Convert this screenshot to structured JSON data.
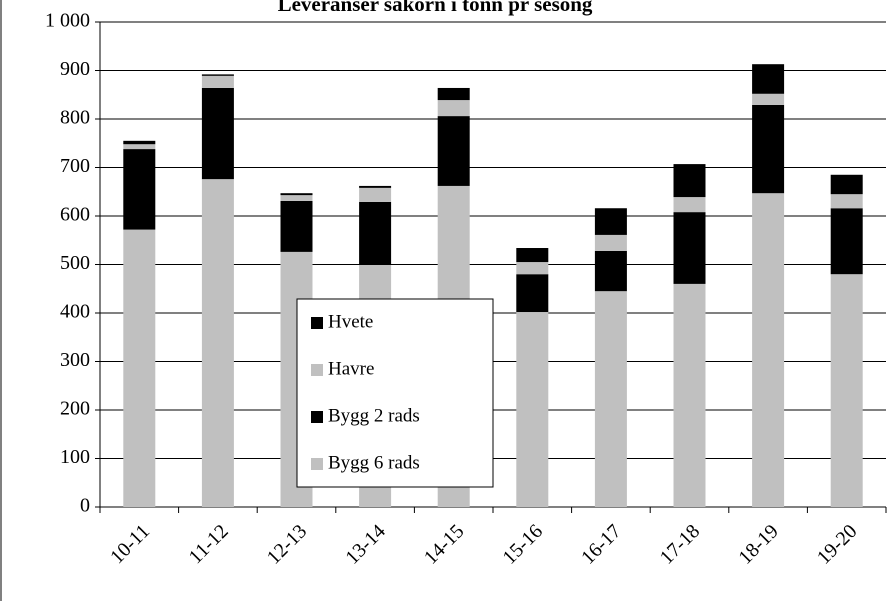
{
  "chart_data": {
    "type": "bar",
    "stacked": true,
    "title": "Leveranser såkorn i tonn pr sesong",
    "categories": [
      "10-11",
      "11-12",
      "12-13",
      "13-14",
      "14-15",
      "15-16",
      "16-17",
      "17-18",
      "18-19",
      "19-20"
    ],
    "series": [
      {
        "name": "Bygg 6 rads",
        "color": "#c0c0c0",
        "values": [
          572,
          676,
          526,
          499,
          662,
          402,
          445,
          460,
          647,
          480
        ]
      },
      {
        "name": "Bygg 2 rads",
        "color": "#000000",
        "values": [
          166,
          188,
          105,
          130,
          144,
          78,
          83,
          148,
          182,
          136
        ]
      },
      {
        "name": "Havre",
        "color": "#c0c0c0",
        "values": [
          10,
          25,
          12,
          29,
          33,
          25,
          33,
          31,
          23,
          29
        ]
      },
      {
        "name": "Hvete",
        "color": "#000000",
        "values": [
          7,
          3,
          4,
          4,
          25,
          29,
          55,
          68,
          61,
          40
        ]
      }
    ],
    "ylim": [
      0,
      1000
    ],
    "yticks": [
      0,
      100,
      200,
      300,
      400,
      500,
      600,
      700,
      800,
      900,
      {
        "value": 1000,
        "label": "1 000"
      }
    ],
    "grid": true
  }
}
